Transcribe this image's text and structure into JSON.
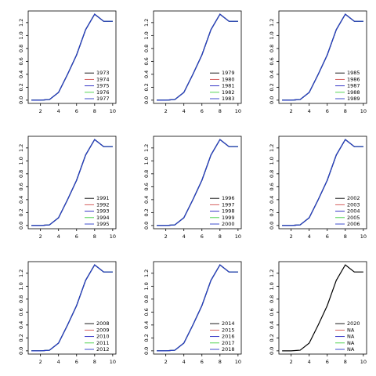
{
  "chart_data": [
    {
      "type": "line",
      "xlim": [
        0.64,
        10.36
      ],
      "ylim": [
        -0.05,
        1.38
      ],
      "xticks": [
        2,
        4,
        6,
        8,
        10
      ],
      "yticks": [
        {
          "value": 0,
          "label": "0.0"
        },
        0.2,
        0.4,
        0.6,
        0.8,
        {
          "value": 1,
          "label": "1.0"
        },
        1.2
      ],
      "legend": "bottomright",
      "x": [
        1,
        2,
        3,
        4,
        5,
        6,
        7,
        8,
        9,
        10
      ],
      "series": [
        {
          "name": "1973",
          "color": "#000000",
          "values": [
            0,
            0,
            0.01,
            0.12,
            0.4,
            0.7,
            1.09,
            1.33,
            1.22,
            1.22
          ]
        },
        {
          "name": "1974",
          "color": "#d0504d",
          "values": [
            0,
            0,
            0.01,
            0.12,
            0.4,
            0.7,
            1.09,
            1.33,
            1.22,
            1.22
          ]
        },
        {
          "name": "1975",
          "color": "#2020c0",
          "values": [
            0,
            0,
            0.01,
            0.12,
            0.4,
            0.7,
            1.09,
            1.33,
            1.22,
            1.22
          ]
        },
        {
          "name": "1976",
          "color": "#40d040",
          "values": [
            0,
            0,
            0.01,
            0.12,
            0.4,
            0.7,
            1.09,
            1.33,
            1.22,
            1.22
          ]
        },
        {
          "name": "1977",
          "color": "#2838c8",
          "values": [
            0,
            0,
            0.01,
            0.12,
            0.4,
            0.7,
            1.09,
            1.33,
            1.22,
            1.22
          ]
        }
      ]
    },
    {
      "type": "line",
      "xlim": [
        0.64,
        10.36
      ],
      "ylim": [
        -0.05,
        1.38
      ],
      "xticks": [
        2,
        4,
        6,
        8,
        10
      ],
      "yticks": [
        {
          "value": 0,
          "label": "0.0"
        },
        0.2,
        0.4,
        0.6,
        0.8,
        {
          "value": 1,
          "label": "1.0"
        },
        1.2
      ],
      "legend": "bottomright",
      "x": [
        1,
        2,
        3,
        4,
        5,
        6,
        7,
        8,
        9,
        10
      ],
      "series": [
        {
          "name": "1979",
          "color": "#000000",
          "values": [
            0,
            0,
            0.01,
            0.12,
            0.4,
            0.7,
            1.09,
            1.33,
            1.22,
            1.22
          ]
        },
        {
          "name": "1980",
          "color": "#d0504d",
          "values": [
            0,
            0,
            0.01,
            0.12,
            0.4,
            0.7,
            1.09,
            1.33,
            1.22,
            1.22
          ]
        },
        {
          "name": "1981",
          "color": "#2020c0",
          "values": [
            0,
            0,
            0.01,
            0.12,
            0.4,
            0.7,
            1.09,
            1.33,
            1.22,
            1.22
          ]
        },
        {
          "name": "1982",
          "color": "#40d040",
          "values": [
            0,
            0,
            0.01,
            0.12,
            0.4,
            0.7,
            1.09,
            1.33,
            1.22,
            1.22
          ]
        },
        {
          "name": "1983",
          "color": "#2838c8",
          "values": [
            0,
            0,
            0.01,
            0.12,
            0.4,
            0.7,
            1.09,
            1.33,
            1.22,
            1.22
          ]
        }
      ]
    },
    {
      "type": "line",
      "xlim": [
        0.64,
        10.36
      ],
      "ylim": [
        -0.05,
        1.38
      ],
      "xticks": [
        2,
        4,
        6,
        8,
        10
      ],
      "yticks": [
        {
          "value": 0,
          "label": "0.0"
        },
        0.2,
        0.4,
        0.6,
        0.8,
        {
          "value": 1,
          "label": "1.0"
        },
        1.2
      ],
      "legend": "bottomright",
      "x": [
        1,
        2,
        3,
        4,
        5,
        6,
        7,
        8,
        9,
        10
      ],
      "series": [
        {
          "name": "1985",
          "color": "#000000",
          "values": [
            0,
            0,
            0.01,
            0.12,
            0.4,
            0.7,
            1.09,
            1.33,
            1.22,
            1.22
          ]
        },
        {
          "name": "1986",
          "color": "#d0504d",
          "values": [
            0,
            0,
            0.01,
            0.12,
            0.4,
            0.7,
            1.09,
            1.33,
            1.22,
            1.22
          ]
        },
        {
          "name": "1987",
          "color": "#2020c0",
          "values": [
            0,
            0,
            0.01,
            0.12,
            0.4,
            0.7,
            1.09,
            1.33,
            1.22,
            1.22
          ]
        },
        {
          "name": "1988",
          "color": "#40d040",
          "values": [
            0,
            0,
            0.01,
            0.12,
            0.4,
            0.7,
            1.09,
            1.33,
            1.22,
            1.22
          ]
        },
        {
          "name": "1989",
          "color": "#2838c8",
          "values": [
            0,
            0,
            0.01,
            0.12,
            0.4,
            0.7,
            1.09,
            1.33,
            1.22,
            1.22
          ]
        }
      ]
    },
    {
      "type": "line",
      "xlim": [
        0.64,
        10.36
      ],
      "ylim": [
        -0.05,
        1.38
      ],
      "xticks": [
        2,
        4,
        6,
        8,
        10
      ],
      "yticks": [
        {
          "value": 0,
          "label": "0.0"
        },
        0.2,
        0.4,
        0.6,
        0.8,
        {
          "value": 1,
          "label": "1.0"
        },
        1.2
      ],
      "legend": "bottomright",
      "x": [
        1,
        2,
        3,
        4,
        5,
        6,
        7,
        8,
        9,
        10
      ],
      "series": [
        {
          "name": "1991",
          "color": "#000000",
          "values": [
            0,
            0,
            0.01,
            0.12,
            0.4,
            0.7,
            1.09,
            1.33,
            1.22,
            1.22
          ]
        },
        {
          "name": "1992",
          "color": "#d0504d",
          "values": [
            0,
            0,
            0.01,
            0.12,
            0.4,
            0.7,
            1.09,
            1.33,
            1.22,
            1.22
          ]
        },
        {
          "name": "1993",
          "color": "#2020c0",
          "values": [
            0,
            0,
            0.01,
            0.12,
            0.4,
            0.7,
            1.09,
            1.33,
            1.22,
            1.22
          ]
        },
        {
          "name": "1994",
          "color": "#40d040",
          "values": [
            0,
            0,
            0.01,
            0.12,
            0.4,
            0.7,
            1.09,
            1.33,
            1.22,
            1.22
          ]
        },
        {
          "name": "1995",
          "color": "#2838c8",
          "values": [
            0,
            0,
            0.01,
            0.12,
            0.4,
            0.7,
            1.09,
            1.33,
            1.22,
            1.22
          ]
        }
      ]
    },
    {
      "type": "line",
      "xlim": [
        0.64,
        10.36
      ],
      "ylim": [
        -0.05,
        1.38
      ],
      "xticks": [
        2,
        4,
        6,
        8,
        10
      ],
      "yticks": [
        {
          "value": 0,
          "label": "0.0"
        },
        0.2,
        0.4,
        0.6,
        0.8,
        {
          "value": 1,
          "label": "1.0"
        },
        1.2
      ],
      "legend": "bottomright",
      "x": [
        1,
        2,
        3,
        4,
        5,
        6,
        7,
        8,
        9,
        10
      ],
      "series": [
        {
          "name": "1996",
          "color": "#000000",
          "values": [
            0,
            0,
            0.01,
            0.12,
            0.4,
            0.7,
            1.09,
            1.33,
            1.22,
            1.22
          ]
        },
        {
          "name": "1997",
          "color": "#d0504d",
          "values": [
            0,
            0,
            0.01,
            0.12,
            0.4,
            0.7,
            1.09,
            1.33,
            1.22,
            1.22
          ]
        },
        {
          "name": "1998",
          "color": "#2020c0",
          "values": [
            0,
            0,
            0.01,
            0.12,
            0.4,
            0.7,
            1.09,
            1.33,
            1.22,
            1.22
          ]
        },
        {
          "name": "1999",
          "color": "#40d040",
          "values": [
            0,
            0,
            0.01,
            0.12,
            0.4,
            0.7,
            1.09,
            1.33,
            1.22,
            1.22
          ]
        },
        {
          "name": "2000",
          "color": "#2838c8",
          "values": [
            0,
            0,
            0.01,
            0.12,
            0.4,
            0.7,
            1.09,
            1.33,
            1.22,
            1.22
          ]
        }
      ]
    },
    {
      "type": "line",
      "xlim": [
        0.64,
        10.36
      ],
      "ylim": [
        -0.05,
        1.38
      ],
      "xticks": [
        2,
        4,
        6,
        8,
        10
      ],
      "yticks": [
        {
          "value": 0,
          "label": "0.0"
        },
        0.2,
        0.4,
        0.6,
        0.8,
        {
          "value": 1,
          "label": "1.0"
        },
        1.2
      ],
      "legend": "bottomright",
      "x": [
        1,
        2,
        3,
        4,
        5,
        6,
        7,
        8,
        9,
        10
      ],
      "series": [
        {
          "name": "2002",
          "color": "#000000",
          "values": [
            0,
            0,
            0.01,
            0.12,
            0.4,
            0.7,
            1.09,
            1.33,
            1.22,
            1.22
          ]
        },
        {
          "name": "2003",
          "color": "#d0504d",
          "values": [
            0,
            0,
            0.01,
            0.12,
            0.4,
            0.7,
            1.09,
            1.33,
            1.22,
            1.22
          ]
        },
        {
          "name": "2004",
          "color": "#2020c0",
          "values": [
            0,
            0,
            0.01,
            0.12,
            0.4,
            0.7,
            1.09,
            1.33,
            1.22,
            1.22
          ]
        },
        {
          "name": "2005",
          "color": "#40d040",
          "values": [
            0,
            0,
            0.01,
            0.12,
            0.4,
            0.7,
            1.09,
            1.33,
            1.22,
            1.22
          ]
        },
        {
          "name": "2006",
          "color": "#2838c8",
          "values": [
            0,
            0,
            0.01,
            0.12,
            0.4,
            0.7,
            1.09,
            1.33,
            1.22,
            1.22
          ]
        }
      ]
    },
    {
      "type": "line",
      "xlim": [
        0.64,
        10.36
      ],
      "ylim": [
        -0.05,
        1.38
      ],
      "xticks": [
        2,
        4,
        6,
        8,
        10
      ],
      "yticks": [
        {
          "value": 0,
          "label": "0.0"
        },
        0.2,
        0.4,
        0.6,
        0.8,
        {
          "value": 1,
          "label": "1.0"
        },
        1.2
      ],
      "legend": "bottomright",
      "x": [
        1,
        2,
        3,
        4,
        5,
        6,
        7,
        8,
        9,
        10
      ],
      "series": [
        {
          "name": "2008",
          "color": "#000000",
          "values": [
            0,
            0,
            0.01,
            0.12,
            0.4,
            0.7,
            1.09,
            1.33,
            1.22,
            1.22
          ]
        },
        {
          "name": "2009",
          "color": "#d0504d",
          "values": [
            0,
            0,
            0.01,
            0.12,
            0.4,
            0.7,
            1.09,
            1.33,
            1.22,
            1.22
          ]
        },
        {
          "name": "2010",
          "color": "#2020c0",
          "values": [
            0,
            0,
            0.01,
            0.12,
            0.4,
            0.7,
            1.09,
            1.33,
            1.22,
            1.22
          ]
        },
        {
          "name": "2011",
          "color": "#40d040",
          "values": [
            0,
            0,
            0.01,
            0.12,
            0.4,
            0.7,
            1.09,
            1.33,
            1.22,
            1.22
          ]
        },
        {
          "name": "2012",
          "color": "#2838c8",
          "values": [
            0,
            0,
            0.01,
            0.12,
            0.4,
            0.7,
            1.09,
            1.33,
            1.22,
            1.22
          ]
        }
      ]
    },
    {
      "type": "line",
      "xlim": [
        0.64,
        10.36
      ],
      "ylim": [
        -0.05,
        1.38
      ],
      "xticks": [
        2,
        4,
        6,
        8,
        10
      ],
      "yticks": [
        {
          "value": 0,
          "label": "0.0"
        },
        0.2,
        0.4,
        0.6,
        0.8,
        {
          "value": 1,
          "label": "1.0"
        },
        1.2
      ],
      "legend": "bottomright",
      "x": [
        1,
        2,
        3,
        4,
        5,
        6,
        7,
        8,
        9,
        10
      ],
      "series": [
        {
          "name": "2014",
          "color": "#000000",
          "values": [
            0,
            0,
            0.01,
            0.12,
            0.4,
            0.7,
            1.09,
            1.33,
            1.22,
            1.22
          ]
        },
        {
          "name": "2015",
          "color": "#d0504d",
          "values": [
            0,
            0,
            0.01,
            0.12,
            0.4,
            0.7,
            1.09,
            1.33,
            1.22,
            1.22
          ]
        },
        {
          "name": "2016",
          "color": "#2020c0",
          "values": [
            0,
            0,
            0.01,
            0.12,
            0.4,
            0.7,
            1.09,
            1.33,
            1.22,
            1.22
          ]
        },
        {
          "name": "2017",
          "color": "#40d040",
          "values": [
            0,
            0,
            0.01,
            0.12,
            0.4,
            0.7,
            1.09,
            1.33,
            1.22,
            1.22
          ]
        },
        {
          "name": "2018",
          "color": "#2838c8",
          "values": [
            0,
            0,
            0.01,
            0.12,
            0.4,
            0.7,
            1.09,
            1.33,
            1.22,
            1.22
          ]
        }
      ]
    },
    {
      "type": "line",
      "xlim": [
        0.64,
        10.36
      ],
      "ylim": [
        -0.05,
        1.38
      ],
      "xticks": [
        2,
        4,
        6,
        8,
        10
      ],
      "yticks": [
        {
          "value": 0,
          "label": "0.0"
        },
        0.2,
        0.4,
        0.6,
        0.8,
        {
          "value": 1,
          "label": "1.0"
        },
        1.2
      ],
      "legend": "bottomright",
      "x": [
        1,
        2,
        3,
        4,
        5,
        6,
        7,
        8,
        9,
        10
      ],
      "series": [
        {
          "name": "2020",
          "color": "#000000",
          "values": [
            0,
            0,
            0.01,
            0.12,
            0.4,
            0.7,
            1.09,
            1.33,
            1.22,
            1.22
          ]
        },
        {
          "name": "NA",
          "color": "#d0504d",
          "values": [
            null,
            null,
            null,
            null,
            null,
            null,
            null,
            null,
            null,
            null
          ]
        },
        {
          "name": "NA",
          "color": "#2020c0",
          "values": [
            null,
            null,
            null,
            null,
            null,
            null,
            null,
            null,
            null,
            null
          ]
        },
        {
          "name": "NA",
          "color": "#40d040",
          "values": [
            null,
            null,
            null,
            null,
            null,
            null,
            null,
            null,
            null,
            null
          ]
        },
        {
          "name": "NA",
          "color": "#2838c8",
          "values": [
            null,
            null,
            null,
            null,
            null,
            null,
            null,
            null,
            null,
            null
          ]
        }
      ]
    }
  ]
}
